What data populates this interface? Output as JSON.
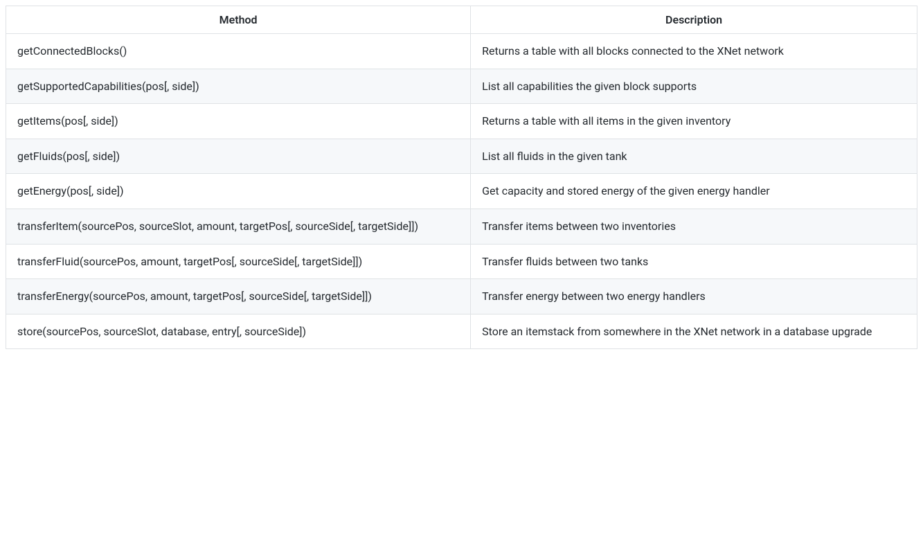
{
  "table": {
    "columns": [
      "Method",
      "Description"
    ],
    "rows": [
      {
        "method": "getConnectedBlocks()",
        "description": "Returns a table with all blocks connected to the XNet network"
      },
      {
        "method": "getSupportedCapabilities(pos[, side])",
        "description": "List all capabilities the given block supports"
      },
      {
        "method": "getItems(pos[, side])",
        "description": "Returns a table with all items in the given inventory"
      },
      {
        "method": "getFluids(pos[, side])",
        "description": "List all fluids in the given tank"
      },
      {
        "method": "getEnergy(pos[, side])",
        "description": "Get capacity and stored energy of the given energy handler"
      },
      {
        "method": "transferItem(sourcePos, sourceSlot, amount, targetPos[, sourceSide[, targetSide]])",
        "description": "Transfer items between two inventories"
      },
      {
        "method": "transferFluid(sourcePos, amount, targetPos[, sourceSide[, targetSide]])",
        "description": "Transfer fluids between two tanks"
      },
      {
        "method": "transferEnergy(sourcePos, amount, targetPos[, sourceSide[, targetSide]])",
        "description": "Transfer energy between two energy handlers"
      },
      {
        "method": "store(sourcePos, sourceSlot, database, entry[, sourceSide])",
        "description": "Store an itemstack from somewhere in the XNet network in a database upgrade"
      }
    ],
    "header_background": "#ffffff",
    "row_alt_background": "#f6f8fa",
    "border_color": "#dfe2e5",
    "text_color": "#24292e",
    "font_size": 16,
    "header_font_weight": 600
  }
}
